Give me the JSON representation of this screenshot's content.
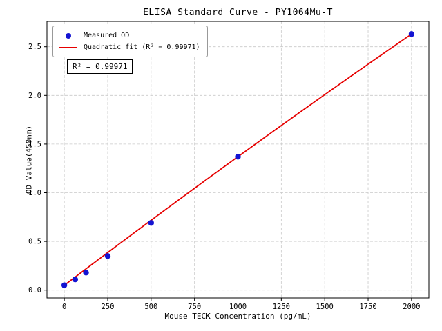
{
  "chart_data": {
    "type": "scatter",
    "title": "ELISA Standard Curve - PY1064Mu-T",
    "xlabel": "Mouse TECK Concentration (pg/mL)",
    "ylabel": "OD Value(450nm)",
    "xlim": [
      -100,
      2100
    ],
    "ylim": [
      -0.08,
      2.76
    ],
    "x_ticks": [
      0,
      250,
      500,
      750,
      1000,
      1250,
      1500,
      1750,
      2000
    ],
    "y_ticks": [
      0.0,
      0.5,
      1.0,
      1.5,
      2.0,
      2.5
    ],
    "grid": true,
    "grid_color": "#c9c9c9",
    "series": [
      {
        "name": "Measured OD",
        "kind": "scatter",
        "color": "#1414d2",
        "x": [
          0,
          62.5,
          125,
          250,
          500,
          1000,
          2000
        ],
        "y": [
          0.05,
          0.11,
          0.18,
          0.35,
          0.69,
          1.37,
          2.63
        ]
      },
      {
        "name": "Quadratic fit (R² = 0.99971)",
        "kind": "line",
        "color": "#e60000",
        "fit": {
          "a": 0.05,
          "b": 0.00135,
          "c": -3e-08,
          "x_range": [
            0,
            2000
          ]
        }
      }
    ],
    "legend_position": "upper-left",
    "annotation": "R² = 0.99971"
  }
}
